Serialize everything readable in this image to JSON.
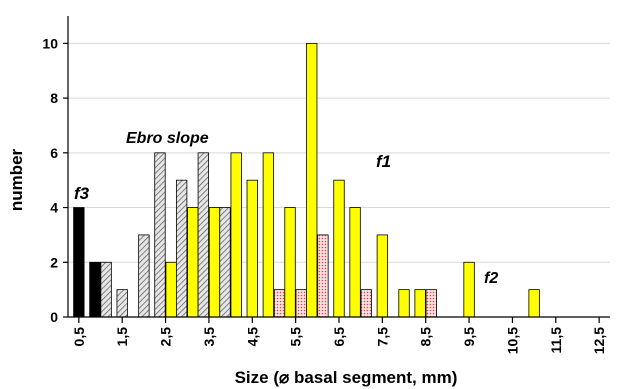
{
  "chart_data": {
    "type": "bar",
    "title": "",
    "xlabel": "Size (⌀ basal segment, mm)",
    "ylabel": "number",
    "ylim": [
      0,
      11
    ],
    "yticks": [
      "0",
      "2",
      "4",
      "6",
      "8",
      "10"
    ],
    "categories": [
      "0,5",
      "1",
      "1,5",
      "2",
      "2,5",
      "3",
      "3,5",
      "4",
      "4,5",
      "5",
      "5,5",
      "6",
      "6,5",
      "7",
      "7,5",
      "8",
      "8,5",
      "9",
      "9,5",
      "10",
      "10,5",
      "11",
      "11,5",
      "12",
      "12,5"
    ],
    "tick_labels": [
      "0,5",
      "1,5",
      "2,5",
      "3,5",
      "4,5",
      "5,5",
      "6,5",
      "7,5",
      "8,5",
      "9,5",
      "10,5",
      "11,5",
      "12,5"
    ],
    "grid": "horizontal",
    "series": [
      {
        "key": "f3",
        "color": "#000000",
        "fill": "solid",
        "values": [
          4,
          2,
          0,
          0,
          0,
          0,
          0,
          0,
          0,
          0,
          0,
          0,
          0,
          0,
          0,
          0,
          0,
          0,
          0,
          0,
          0,
          0,
          0,
          0,
          0
        ]
      },
      {
        "key": "ebro",
        "color": "#d0d0d0",
        "fill": "hatched",
        "values": [
          0,
          2,
          1,
          3,
          6,
          5,
          6,
          4,
          0,
          0,
          0,
          0,
          0,
          0,
          0,
          0,
          0,
          0,
          0,
          0,
          0,
          0,
          0,
          0,
          0
        ]
      },
      {
        "key": "f1",
        "color": "#ffff00",
        "fill": "solid",
        "values": [
          0,
          0,
          0,
          0,
          2,
          4,
          4,
          6,
          5,
          6,
          4,
          10,
          5,
          4,
          3,
          1,
          1,
          0,
          2,
          0,
          0,
          1,
          0,
          0,
          0
        ]
      },
      {
        "key": "f2",
        "color": "#f4b6b6",
        "fill": "dotted",
        "values": [
          0,
          0,
          0,
          0,
          0,
          0,
          0,
          0,
          0,
          1,
          1,
          3,
          0,
          1,
          0,
          0,
          1,
          0,
          0,
          0,
          0,
          0,
          0,
          0,
          0
        ]
      }
    ],
    "labels": [
      {
        "text": "f3",
        "near": "f3 bar at 0,5"
      },
      {
        "text": "Ebro slope",
        "near": "hatched bars 2,5–3,5"
      },
      {
        "text": "f1",
        "near": "tall yellow bar"
      },
      {
        "text": "f2",
        "near": "dotted bar at 9,5"
      }
    ]
  }
}
